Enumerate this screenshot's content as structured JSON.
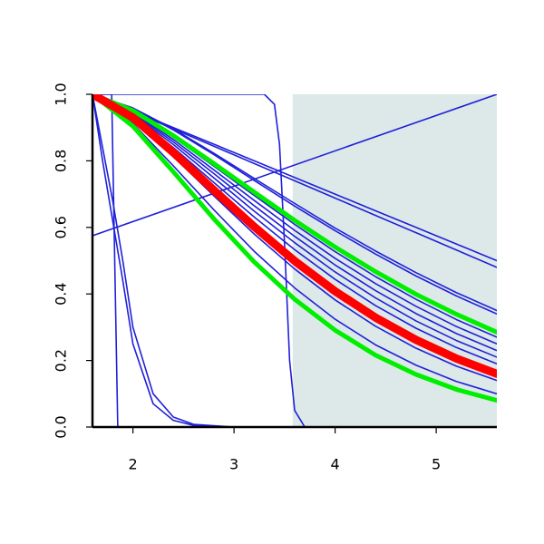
{
  "chart_data": {
    "type": "line",
    "xlim": [
      1.6,
      5.6
    ],
    "ylim": [
      0,
      1
    ],
    "xticks": [
      2,
      3,
      4,
      5
    ],
    "yticks": [
      {
        "value": 0,
        "label": "0.0"
      },
      0.2,
      0.4,
      0.6,
      0.8,
      {
        "value": 1,
        "label": "1.0"
      }
    ],
    "shaded_xlim": [
      3.58,
      5.6
    ],
    "shade_color": "#dde9e9",
    "series": [
      {
        "color": "#2020d8",
        "width": 1.6,
        "x": [
          1.6,
          5.6
        ],
        "values": [
          0.575,
          1
        ]
      },
      {
        "color": "#2020d8",
        "width": 1.6,
        "x": [
          1.6,
          1.79,
          1.82,
          1.85,
          5.6
        ],
        "values": [
          1,
          1,
          0.5,
          0,
          0
        ]
      },
      {
        "color": "#2020d8",
        "width": 1.6,
        "x": [
          1.6,
          3.3,
          3.4,
          3.45,
          3.5,
          3.55,
          3.6,
          3.7,
          5.6
        ],
        "values": [
          1,
          1,
          0.97,
          0.85,
          0.55,
          0.2,
          0.05,
          0,
          0
        ]
      },
      {
        "color": "#2020d8",
        "width": 1.6,
        "x": [
          1.6,
          1.7,
          1.8,
          1.9,
          2.0,
          2.2,
          2.4,
          2.6,
          3.0,
          5.6
        ],
        "values": [
          1,
          0.8,
          0.62,
          0.44,
          0.25,
          0.07,
          0.02,
          0.005,
          0,
          0
        ]
      },
      {
        "color": "#2020d8",
        "width": 1.6,
        "x": [
          1.6,
          1.7,
          1.8,
          1.9,
          2.0,
          2.2,
          2.4,
          2.6,
          3.0,
          5.6
        ],
        "values": [
          1,
          0.84,
          0.68,
          0.5,
          0.3,
          0.1,
          0.03,
          0.008,
          0,
          0
        ]
      },
      {
        "color": "#2020d8",
        "width": 1.6,
        "x": [
          1.6,
          2.0,
          2.4,
          2.8,
          3.2,
          3.6,
          4.0,
          4.4,
          4.8,
          5.2,
          5.6
        ],
        "values": [
          1,
          0.95,
          0.9,
          0.85,
          0.8,
          0.75,
          0.7,
          0.65,
          0.6,
          0.55,
          0.5
        ]
      },
      {
        "color": "#2020d8",
        "width": 1.6,
        "x": [
          1.6,
          2.0,
          2.4,
          2.8,
          3.2,
          3.6,
          4.0,
          4.4,
          4.8,
          5.2,
          5.6
        ],
        "values": [
          1,
          0.948,
          0.896,
          0.844,
          0.792,
          0.74,
          0.688,
          0.636,
          0.584,
          0.532,
          0.48
        ]
      },
      {
        "color": "#2020d8",
        "width": 1.6,
        "x": [
          1.6,
          2.0,
          2.4,
          2.8,
          3.2,
          3.6,
          4.0,
          4.4,
          4.8,
          5.2,
          5.6
        ],
        "values": [
          1,
          0.959,
          0.896,
          0.823,
          0.747,
          0.672,
          0.598,
          0.529,
          0.464,
          0.404,
          0.35
        ]
      },
      {
        "color": "#2020d8",
        "width": 1.6,
        "x": [
          1.6,
          2.0,
          2.4,
          2.8,
          3.2,
          3.6,
          4.0,
          4.4,
          4.8,
          5.2,
          5.6
        ],
        "values": [
          1,
          0.958,
          0.893,
          0.819,
          0.741,
          0.664,
          0.59,
          0.52,
          0.454,
          0.394,
          0.34
        ]
      },
      {
        "color": "#2020d8",
        "width": 1.6,
        "x": [
          1.6,
          2.0,
          2.4,
          2.8,
          3.2,
          3.6,
          4.0,
          4.4,
          4.8,
          5.2,
          5.6
        ],
        "values": [
          1,
          0.949,
          0.871,
          0.784,
          0.696,
          0.609,
          0.527,
          0.452,
          0.384,
          0.323,
          0.27
        ]
      },
      {
        "color": "#2020d8",
        "width": 1.6,
        "x": [
          1.6,
          2.0,
          2.4,
          2.8,
          3.2,
          3.6,
          4.0,
          4.4,
          4.8,
          5.2,
          5.6
        ],
        "values": [
          1,
          0.946,
          0.864,
          0.773,
          0.681,
          0.591,
          0.507,
          0.431,
          0.363,
          0.302,
          0.25
        ]
      },
      {
        "color": "#2020d8",
        "width": 1.6,
        "x": [
          1.6,
          2.0,
          2.4,
          2.8,
          3.2,
          3.6,
          4.0,
          4.4,
          4.8,
          5.2,
          5.6
        ],
        "values": [
          1,
          0.943,
          0.857,
          0.762,
          0.665,
          0.573,
          0.487,
          0.41,
          0.341,
          0.281,
          0.23
        ]
      },
      {
        "color": "#2020d8",
        "width": 1.6,
        "x": [
          1.6,
          2.0,
          2.4,
          2.8,
          3.2,
          3.6,
          4.0,
          4.4,
          4.8,
          5.2,
          5.6
        ],
        "values": [
          1,
          0.94,
          0.849,
          0.749,
          0.649,
          0.554,
          0.466,
          0.388,
          0.319,
          0.26,
          0.21
        ]
      },
      {
        "color": "#2020d8",
        "width": 1.6,
        "x": [
          1.6,
          2.0,
          2.4,
          2.8,
          3.2,
          3.6,
          4.0,
          4.4,
          4.8,
          5.2,
          5.6
        ],
        "values": [
          1,
          0.936,
          0.84,
          0.735,
          0.631,
          0.533,
          0.444,
          0.365,
          0.297,
          0.239,
          0.19
        ]
      },
      {
        "color": "#2020d8",
        "width": 1.6,
        "x": [
          1.6,
          2.0,
          2.4,
          2.8,
          3.2,
          3.6,
          4.0,
          4.4,
          4.8,
          5.2,
          5.6
        ],
        "values": [
          1,
          0.925,
          0.813,
          0.695,
          0.58,
          0.475,
          0.382,
          0.303,
          0.237,
          0.183,
          0.14
        ]
      },
      {
        "color": "#2020d8",
        "width": 1.6,
        "x": [
          1.6,
          2.0,
          2.4,
          2.8,
          3.2,
          3.6,
          4.0,
          4.4,
          4.8,
          5.2,
          5.6
        ],
        "values": [
          1,
          0.912,
          0.785,
          0.653,
          0.528,
          0.418,
          0.324,
          0.247,
          0.186,
          0.137,
          0.1
        ]
      },
      {
        "color": "#00ee00",
        "width": 5,
        "x": [
          1.6,
          2.0,
          2.4,
          2.8,
          3.2,
          3.6,
          4.0,
          4.4,
          4.8,
          5.2,
          5.6
        ],
        "values": [
          1,
          0.951,
          0.876,
          0.792,
          0.706,
          0.621,
          0.541,
          0.467,
          0.399,
          0.339,
          0.285
        ]
      },
      {
        "color": "#00ee00",
        "width": 5,
        "x": [
          1.6,
          2.0,
          2.4,
          2.8,
          3.2,
          3.6,
          4.0,
          4.4,
          4.8,
          5.2,
          5.6
        ],
        "values": [
          1,
          0.904,
          0.767,
          0.626,
          0.496,
          0.384,
          0.291,
          0.216,
          0.158,
          0.113,
          0.08
        ]
      },
      {
        "color": "#ff0000",
        "width": 9,
        "x": [
          1.6,
          2.0,
          2.4,
          2.8,
          3.2,
          3.6,
          4.0,
          4.4,
          4.8,
          5.2,
          5.6
        ],
        "values": [
          1,
          0.93,
          0.825,
          0.712,
          0.602,
          0.499,
          0.408,
          0.329,
          0.262,
          0.206,
          0.16
        ]
      }
    ]
  }
}
